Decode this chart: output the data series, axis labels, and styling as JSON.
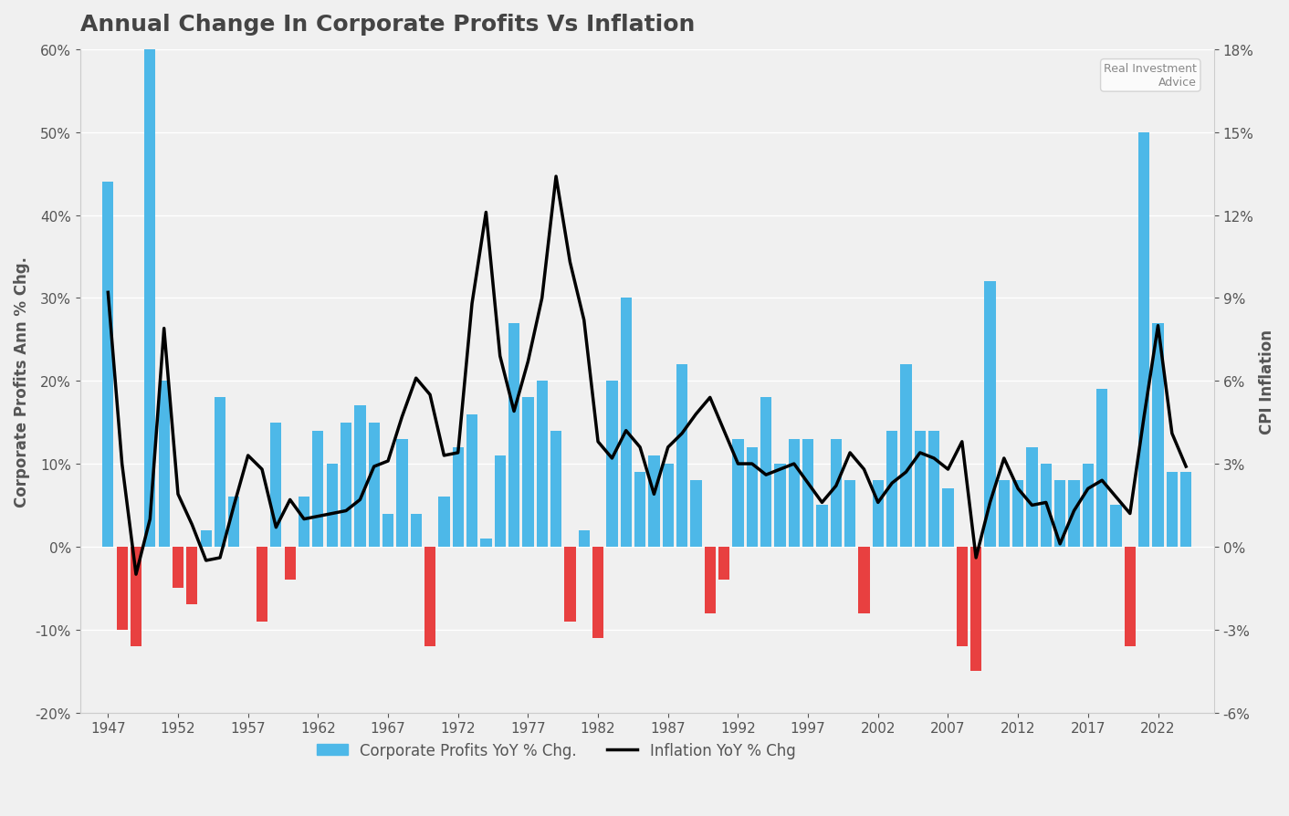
{
  "title": "Annual Change In Corporate Profits Vs Inflation",
  "ylabel_left": "Corporate Profits Ann % Chg.",
  "ylabel_right": "CPI Inflation",
  "legend_bar": "Corporate Profits YoY % Chg.",
  "legend_line": "Inflation YoY % Chg",
  "background_color": "#f0f0f0",
  "bar_color_pos": "#4db8e8",
  "bar_color_neg": "#e84040",
  "line_color": "#000000",
  "ylim_left": [
    -0.2,
    0.6
  ],
  "ylim_right": [
    -0.06,
    0.18
  ],
  "yticks_left": [
    -0.2,
    -0.1,
    0.0,
    0.1,
    0.2,
    0.3,
    0.4,
    0.5,
    0.6
  ],
  "yticks_right": [
    -0.06,
    -0.03,
    0.0,
    0.03,
    0.06,
    0.09,
    0.12,
    0.15,
    0.18
  ],
  "xticks": [
    1947,
    1952,
    1957,
    1962,
    1967,
    1972,
    1977,
    1982,
    1987,
    1992,
    1997,
    2002,
    2007,
    2012,
    2017,
    2022
  ],
  "years": [
    1947,
    1948,
    1949,
    1950,
    1951,
    1952,
    1953,
    1954,
    1955,
    1956,
    1957,
    1958,
    1959,
    1960,
    1961,
    1962,
    1963,
    1964,
    1965,
    1966,
    1967,
    1968,
    1969,
    1970,
    1971,
    1972,
    1973,
    1974,
    1975,
    1976,
    1977,
    1978,
    1979,
    1980,
    1981,
    1982,
    1983,
    1984,
    1985,
    1986,
    1987,
    1988,
    1989,
    1990,
    1991,
    1992,
    1993,
    1994,
    1995,
    1996,
    1997,
    1998,
    1999,
    2000,
    2001,
    2002,
    2003,
    2004,
    2005,
    2006,
    2007,
    2008,
    2009,
    2010,
    2011,
    2012,
    2013,
    2014,
    2015,
    2016,
    2017,
    2018,
    2019,
    2020,
    2021,
    2022,
    2023,
    2024
  ],
  "corp_profits": [
    0.44,
    -0.1,
    -0.12,
    0.6,
    0.2,
    -0.05,
    -0.07,
    0.02,
    0.18,
    0.06,
    0.0,
    -0.09,
    0.15,
    -0.04,
    0.06,
    0.14,
    0.1,
    0.15,
    0.17,
    0.15,
    0.04,
    0.13,
    0.04,
    -0.12,
    0.06,
    0.12,
    0.16,
    0.01,
    0.11,
    0.27,
    0.18,
    0.2,
    0.14,
    -0.09,
    0.02,
    -0.11,
    0.2,
    0.3,
    0.09,
    0.11,
    0.1,
    0.22,
    0.08,
    -0.08,
    -0.04,
    0.13,
    0.12,
    0.18,
    0.1,
    0.13,
    0.13,
    0.05,
    0.13,
    0.08,
    -0.08,
    0.08,
    0.14,
    0.22,
    0.14,
    0.14,
    0.07,
    -0.12,
    -0.15,
    0.32,
    0.08,
    0.08,
    0.12,
    0.1,
    0.08,
    0.08,
    0.1,
    0.19,
    0.05,
    -0.12,
    0.5,
    0.27,
    0.09,
    0.09
  ],
  "cpi": [
    0.092,
    0.03,
    -0.01,
    0.01,
    0.079,
    0.019,
    0.008,
    -0.005,
    -0.004,
    0.015,
    0.033,
    0.028,
    0.007,
    0.017,
    0.01,
    0.011,
    0.012,
    0.013,
    0.017,
    0.029,
    0.031,
    0.047,
    0.061,
    0.055,
    0.033,
    0.034,
    0.088,
    0.121,
    0.069,
    0.049,
    0.067,
    0.09,
    0.134,
    0.103,
    0.082,
    0.038,
    0.032,
    0.042,
    0.036,
    0.019,
    0.036,
    0.041,
    0.048,
    0.054,
    0.042,
    0.03,
    0.03,
    0.026,
    0.028,
    0.03,
    0.023,
    0.016,
    0.022,
    0.034,
    0.028,
    0.016,
    0.023,
    0.027,
    0.034,
    0.032,
    0.028,
    0.038,
    -0.004,
    0.016,
    0.032,
    0.021,
    0.015,
    0.016,
    0.001,
    0.013,
    0.021,
    0.024,
    0.018,
    0.012,
    0.047,
    0.08,
    0.041,
    0.029
  ]
}
